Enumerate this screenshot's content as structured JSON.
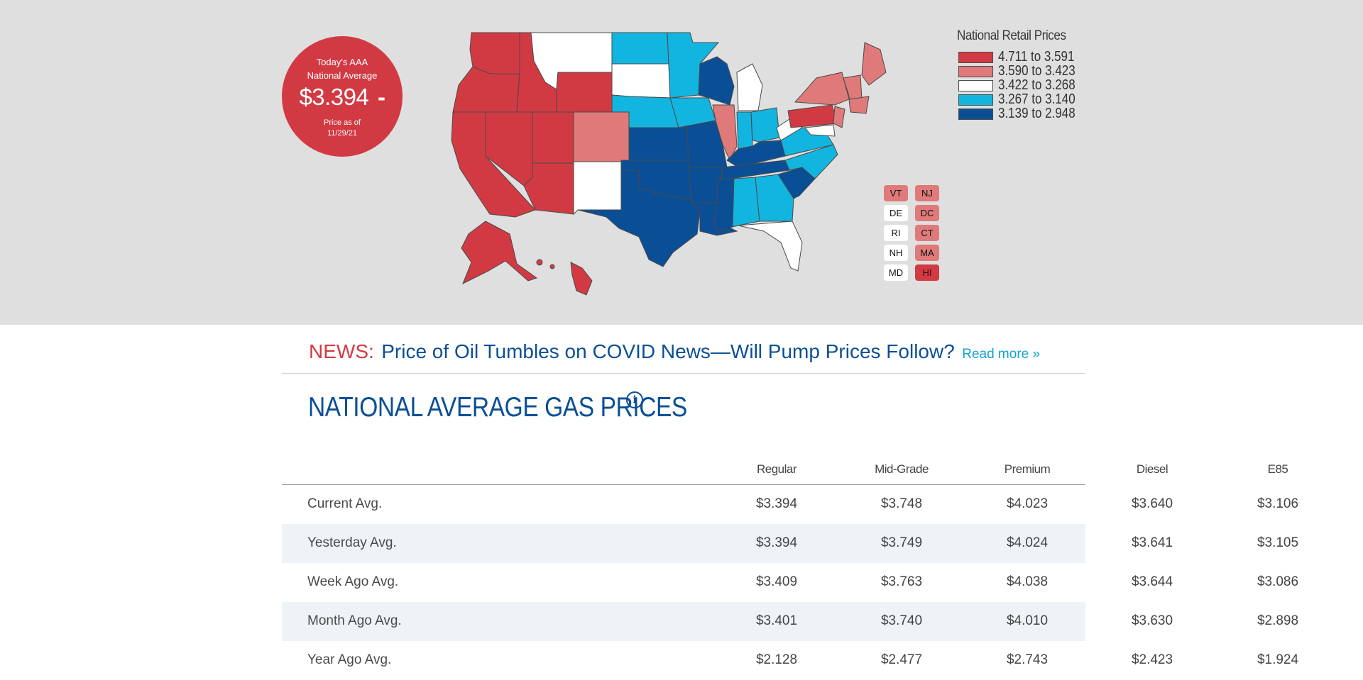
{
  "national_average": {
    "title": "Today's AAA National Average",
    "price": "$3.394",
    "trend": "-",
    "as_of_label": "Price as of",
    "as_of_date": "11/29/21",
    "color": "#d23a43"
  },
  "legend": {
    "title": "National Retail Prices",
    "ranges": [
      {
        "label": "4.711 to 3.591",
        "color": "#d23a43"
      },
      {
        "label": "3.590 to 3.423",
        "color": "#e07a7a"
      },
      {
        "label": "3.422 to 3.268",
        "color": "#ffffff"
      },
      {
        "label": "3.267 to 3.140",
        "color": "#12b5e0"
      },
      {
        "label": "3.139 to 2.948",
        "color": "#0a4f96"
      }
    ]
  },
  "small_states": [
    {
      "abbr": "VT",
      "color": "#e07a7a"
    },
    {
      "abbr": "NJ",
      "color": "#e07a7a"
    },
    {
      "abbr": "DE",
      "color": "#ffffff"
    },
    {
      "abbr": "DC",
      "color": "#e07a7a"
    },
    {
      "abbr": "RI",
      "color": "#ffffff"
    },
    {
      "abbr": "CT",
      "color": "#e07a7a"
    },
    {
      "abbr": "NH",
      "color": "#ffffff"
    },
    {
      "abbr": "MA",
      "color": "#e07a7a"
    },
    {
      "abbr": "MD",
      "color": "#ffffff"
    },
    {
      "abbr": "HI",
      "color": "#d23a43"
    }
  ],
  "news": {
    "label": "NEWS:",
    "headline": "Price of Oil Tumbles on COVID News—Will Pump Prices Follow?",
    "read_more": "Read more »"
  },
  "section": {
    "title": "NATIONAL AVERAGE GAS PRICES",
    "info_icon": "info-icon"
  },
  "table": {
    "columns": [
      "Regular",
      "Mid-Grade",
      "Premium",
      "Diesel",
      "E85"
    ],
    "rows": [
      {
        "label": "Current Avg.",
        "values": [
          "$3.394",
          "$3.748",
          "$4.023",
          "$3.640",
          "$3.106"
        ]
      },
      {
        "label": "Yesterday Avg.",
        "values": [
          "$3.394",
          "$3.749",
          "$4.024",
          "$3.641",
          "$3.105"
        ]
      },
      {
        "label": "Week Ago Avg.",
        "values": [
          "$3.409",
          "$3.763",
          "$4.038",
          "$3.644",
          "$3.086"
        ]
      },
      {
        "label": "Month Ago Avg.",
        "values": [
          "$3.401",
          "$3.740",
          "$4.010",
          "$3.630",
          "$2.898"
        ]
      },
      {
        "label": "Year Ago Avg.",
        "values": [
          "$2.128",
          "$2.477",
          "$2.743",
          "$2.423",
          "$1.924"
        ]
      }
    ]
  }
}
